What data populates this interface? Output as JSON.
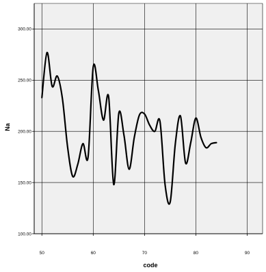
{
  "chart_data": {
    "type": "line",
    "xlabel": "code",
    "ylabel": "Na",
    "xlim": [
      48.5,
      93
    ],
    "ylim": [
      100,
      325
    ],
    "x_ticks": [
      50,
      60,
      70,
      80,
      90
    ],
    "x_tick_labels": [
      "50",
      "60",
      "70",
      "80",
      "90"
    ],
    "y_ticks": [
      100,
      150,
      200,
      250,
      300
    ],
    "y_tick_labels": [
      "100.00",
      "150.00",
      "200.00",
      "250.00",
      "300.00"
    ],
    "grid": true,
    "interpolation": "smooth",
    "colors": {
      "background": "#f0f0f0",
      "grid": "#000000",
      "line": "#000000"
    },
    "series": [
      {
        "x": [
          50,
          51,
          52,
          53,
          54,
          55,
          56,
          57,
          58,
          59,
          60,
          61,
          62,
          63,
          64,
          65,
          66,
          67,
          68,
          69,
          70,
          71,
          72,
          73,
          74,
          75,
          76,
          77,
          78,
          79,
          80,
          81,
          82,
          83,
          84
        ],
        "values": [
          233,
          277,
          244,
          254,
          232,
          185,
          156,
          168,
          188,
          175,
          263,
          240,
          211,
          234,
          148,
          218,
          196,
          163,
          194,
          216,
          217,
          206,
          200,
          210,
          148,
          131,
          188,
          215,
          169,
          189,
          213,
          194,
          184,
          188,
          189
        ]
      }
    ]
  }
}
